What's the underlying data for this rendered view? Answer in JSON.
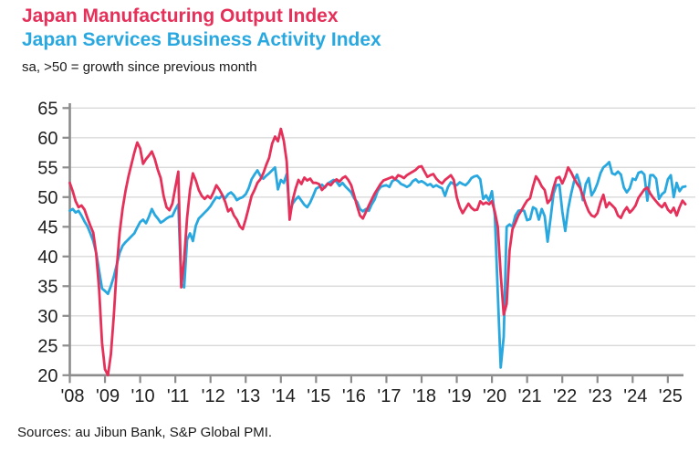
{
  "header": {
    "title_line1": "Japan Manufacturing Output Index",
    "title_line2": "Japan Services Business Activity Index",
    "subtitle": "sa, >50 = growth since previous month"
  },
  "footer": {
    "source": "Sources: au Jibun Bank, S&P Global PMI."
  },
  "colors": {
    "manufacturing_red": "#e5305a",
    "services_blue": "#29a8e0",
    "gridline": "#d9d9d9",
    "axis": "#8c8c8c",
    "tick_label": "#212121"
  },
  "chart_data": {
    "type": "line",
    "title": "Japan Manufacturing Output Index / Japan Services Business Activity Index",
    "subtitle": "sa, >50 = growth since previous month",
    "x_frequency": "monthly",
    "x_start": "2008-01",
    "x_end": "2025-07",
    "x_tick_labels": [
      "'08",
      "'09",
      "'10",
      "'11",
      "'12",
      "'13",
      "'14",
      "'15",
      "'16",
      "'17",
      "'18",
      "'19",
      "'20",
      "'21",
      "'22",
      "'23",
      "'24",
      "'25"
    ],
    "ylim": [
      20,
      65
    ],
    "y_ticks": [
      20,
      25,
      30,
      35,
      40,
      45,
      50,
      55,
      60,
      65
    ],
    "grid": true,
    "legend_position": "top-left-colored-titles",
    "series": [
      {
        "name": "Japan Manufacturing Output Index",
        "color": "#e5305a",
        "values": [
          52.4,
          51.0,
          49.3,
          48.3,
          48.6,
          47.9,
          46.5,
          45.2,
          44.0,
          40.5,
          34.5,
          25.5,
          21.0,
          20.0,
          23.5,
          30.0,
          38.0,
          44.0,
          48.0,
          51.0,
          53.5,
          55.5,
          57.5,
          59.2,
          58.2,
          55.6,
          56.4,
          57.0,
          57.7,
          56.4,
          54.6,
          53.2,
          50.2,
          48.3,
          47.8,
          48.9,
          51.6,
          54.3,
          34.8,
          39.5,
          46.5,
          51.2,
          54.0,
          52.8,
          51.2,
          50.2,
          49.7,
          50.2,
          49.8,
          50.8,
          52.0,
          51.3,
          50.4,
          49.2,
          47.6,
          48.1,
          46.9,
          46.2,
          45.1,
          44.6,
          46.3,
          48.2,
          50.2,
          51.2,
          52.4,
          53.0,
          54.0,
          55.4,
          56.6,
          59.0,
          60.2,
          59.4,
          61.5,
          59.5,
          56.0,
          46.2,
          49.4,
          51.4,
          52.9,
          52.2,
          53.3,
          52.8,
          53.1,
          52.4,
          52.4,
          52.2,
          51.2,
          51.7,
          52.3,
          52.0,
          52.6,
          53.0,
          52.6,
          53.2,
          53.5,
          52.9,
          52.0,
          50.3,
          48.5,
          46.9,
          46.4,
          47.5,
          48.6,
          49.6,
          50.6,
          51.4,
          52.2,
          52.8,
          53.0,
          53.2,
          53.4,
          53.0,
          53.7,
          53.5,
          53.2,
          53.7,
          54.0,
          54.3,
          54.6,
          55.1,
          55.2,
          54.3,
          53.4,
          53.7,
          53.9,
          53.1,
          52.6,
          52.3,
          52.9,
          53.3,
          53.7,
          52.9,
          50.0,
          48.3,
          47.3,
          48.1,
          48.9,
          48.2,
          47.8,
          47.9,
          49.3,
          48.8,
          49.1,
          48.8,
          49.3,
          47.5,
          45.0,
          37.0,
          30.2,
          32.0,
          41.0,
          44.6,
          45.7,
          46.9,
          47.7,
          48.6,
          49.4,
          49.8,
          51.8,
          53.5,
          52.8,
          51.8,
          51.2,
          49.0,
          49.6,
          51.6,
          53.2,
          53.4,
          52.3,
          53.4,
          55.0,
          54.2,
          53.2,
          52.3,
          51.6,
          50.3,
          48.8,
          47.6,
          46.9,
          46.7,
          47.3,
          49.1,
          50.4,
          48.3,
          49.1,
          48.6,
          48.1,
          46.9,
          46.5,
          47.6,
          48.3,
          47.4,
          47.9,
          48.6,
          49.9,
          50.6,
          51.3,
          51.6,
          50.6,
          49.9,
          49.3,
          48.7,
          48.3,
          49.0,
          47.9,
          47.4,
          48.2,
          46.9,
          48.3,
          49.4,
          48.8
        ]
      },
      {
        "name": "Japan Services Business Activity Index",
        "color": "#29a8e0",
        "values": [
          47.7,
          48.0,
          47.4,
          47.7,
          46.9,
          45.9,
          45.1,
          43.9,
          42.6,
          40.6,
          37.6,
          34.6,
          34.2,
          33.7,
          35.0,
          36.6,
          38.6,
          40.6,
          41.8,
          42.4,
          42.9,
          43.4,
          43.9,
          44.9,
          45.8,
          46.2,
          45.6,
          46.7,
          48.0,
          47.0,
          46.4,
          45.7,
          46.0,
          46.4,
          46.7,
          46.8,
          47.9,
          48.8,
          35.3,
          34.8,
          42.8,
          43.9,
          42.6,
          45.2,
          46.4,
          46.9,
          47.4,
          47.9,
          48.5,
          49.3,
          50.0,
          49.8,
          50.3,
          49.8,
          50.5,
          50.8,
          50.3,
          49.5,
          49.8,
          50.0,
          50.5,
          51.5,
          53.0,
          53.8,
          54.5,
          53.6,
          53.1,
          53.6,
          54.0,
          54.5,
          55.0,
          51.3,
          52.9,
          52.4,
          53.9,
          47.3,
          48.9,
          49.6,
          50.1,
          49.4,
          48.7,
          48.3,
          49.1,
          50.2,
          51.4,
          51.7,
          52.1,
          51.6,
          52.3,
          52.6,
          52.9,
          52.6,
          51.9,
          52.4,
          51.8,
          51.3,
          50.8,
          49.8,
          49.2,
          48.0,
          47.6,
          48.0,
          47.7,
          48.8,
          49.6,
          51.0,
          51.7,
          51.9,
          52.0,
          51.7,
          52.7,
          53.0,
          52.7,
          52.2,
          52.0,
          51.7,
          52.0,
          52.7,
          53.0,
          52.5,
          52.7,
          52.4,
          52.0,
          52.2,
          51.7,
          52.0,
          51.7,
          51.5,
          50.2,
          51.7,
          52.5,
          52.2,
          52.0,
          52.5,
          52.2,
          52.0,
          52.5,
          53.2,
          53.5,
          53.6,
          53.0,
          49.7,
          50.3,
          49.4,
          51.0,
          46.8,
          33.8,
          21.3,
          26.5,
          45.0,
          45.4,
          45.0,
          46.9,
          47.7,
          47.8,
          47.7,
          46.1,
          46.3,
          48.3,
          48.0,
          46.2,
          48.0,
          46.8,
          42.5,
          46.5,
          50.6,
          52.0,
          52.1,
          47.6,
          44.3,
          48.0,
          50.5,
          52.6,
          53.8,
          52.3,
          49.5,
          52.2,
          53.2,
          50.3,
          51.1,
          52.3,
          54.0,
          55.0,
          55.4,
          55.9,
          54.0,
          53.8,
          54.3,
          53.8,
          51.6,
          50.8,
          51.5,
          53.1,
          52.9,
          54.1,
          54.3,
          53.8,
          49.4,
          53.7,
          53.7,
          53.1,
          49.7,
          50.5,
          50.9,
          53.0,
          53.7,
          50.0,
          52.4,
          51.0,
          51.7,
          51.8
        ]
      }
    ]
  }
}
